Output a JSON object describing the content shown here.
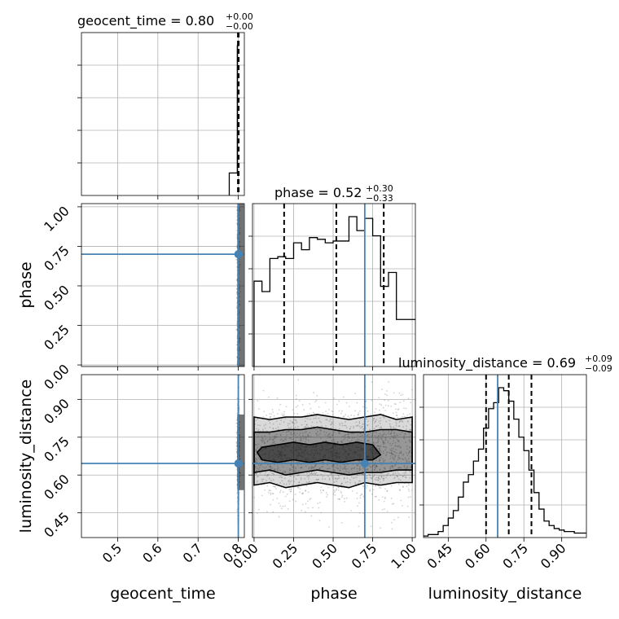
{
  "chart_data": {
    "type": "corner",
    "parameters": [
      "geocent_time",
      "phase",
      "luminosity_distance"
    ],
    "injected_values": {
      "geocent_time": 0.8,
      "phase": 0.7,
      "luminosity_distance": 0.646
    },
    "grid": true,
    "titles": [
      {
        "parameter": "geocent_time",
        "text": "geocent_time = 0.80",
        "upper": "+0.00",
        "lower": "−0.00"
      },
      {
        "parameter": "phase",
        "text": "phase = 0.52",
        "upper": "+0.30",
        "lower": "−0.33"
      },
      {
        "parameter": "luminosity_distance",
        "text": "luminosity_distance = 0.69",
        "upper": "+0.09",
        "lower": "−0.09"
      }
    ],
    "axis_labels": {
      "x": [
        "geocent_time",
        "phase",
        "luminosity_distance"
      ],
      "y": [
        "phase",
        "luminosity_distance"
      ]
    },
    "axis_ranges": {
      "geocent_time": [
        0.41,
        0.815
      ],
      "phase": [
        -0.01,
        1.02
      ],
      "luminosity_distance": [
        0.352,
        0.998
      ]
    },
    "ticks": {
      "geocent_time": {
        "values": [
          0.5,
          0.6,
          0.7,
          0.8
        ],
        "labels": [
          "0.5",
          "0.6",
          "0.7",
          "0.8"
        ]
      },
      "phase": {
        "values": [
          0.0,
          0.25,
          0.5,
          0.75,
          1.0
        ],
        "labels": [
          "0.00",
          "0.25",
          "0.50",
          "0.75",
          "1.00"
        ]
      },
      "luminosity_distance": {
        "values": [
          0.45,
          0.6,
          0.75,
          0.9
        ],
        "labels": [
          "0.45",
          "0.60",
          "0.75",
          "0.90"
        ]
      }
    },
    "quantiles": {
      "geocent_time": [
        0.799,
        0.8,
        0.801
      ],
      "phase": [
        0.19,
        0.52,
        0.82
      ],
      "luminosity_distance": [
        0.6,
        0.69,
        0.78
      ]
    },
    "histograms": {
      "geocent_time": {
        "edges": [
          0.7775,
          0.7975,
          0.8025
        ],
        "values": [
          0.15,
          1.0
        ]
      },
      "phase": {
        "edges": [
          0,
          0.05,
          0.1,
          0.15,
          0.2,
          0.25,
          0.3,
          0.35,
          0.4,
          0.45,
          0.5,
          0.55,
          0.6,
          0.65,
          0.7,
          0.75,
          0.8,
          0.85,
          0.9,
          0.95,
          1.0,
          1.05
        ],
        "values": [
          0.49,
          0.43,
          0.62,
          0.63,
          0.62,
          0.71,
          0.67,
          0.74,
          0.73,
          0.71,
          0.72,
          0.72,
          0.86,
          0.78,
          0.85,
          0.75,
          0.46,
          0.54,
          0.27,
          0.27,
          0.27
        ]
      },
      "luminosity_distance": {
        "edges": [
          0.35,
          0.37,
          0.39,
          0.41,
          0.43,
          0.45,
          0.47,
          0.49,
          0.51,
          0.53,
          0.55,
          0.57,
          0.59,
          0.61,
          0.63,
          0.65,
          0.67,
          0.69,
          0.71,
          0.73,
          0.75,
          0.77,
          0.79,
          0.81,
          0.83,
          0.85,
          0.87,
          0.89,
          0.91,
          0.93,
          0.95,
          0.97,
          0.99,
          1.0
        ],
        "values": [
          0.01,
          0.02,
          0.02,
          0.04,
          0.08,
          0.13,
          0.18,
          0.27,
          0.37,
          0.42,
          0.51,
          0.59,
          0.73,
          0.86,
          0.9,
          1.0,
          0.98,
          0.91,
          0.79,
          0.67,
          0.58,
          0.45,
          0.3,
          0.19,
          0.11,
          0.08,
          0.06,
          0.05,
          0.04,
          0.04,
          0.03,
          0.03,
          0.03
        ]
      }
    },
    "density_2d": {
      "geocent_time_vs_phase": {
        "x_center": 0.8,
        "x_spread": 0.002,
        "y_range": [
          0.0,
          1.0
        ]
      },
      "geocent_time_vs_luminosity_distance": {
        "x_center": 0.8,
        "x_spread": 0.002,
        "y_center": 0.69,
        "y_spread": 0.09
      },
      "phase_vs_luminosity_distance": {
        "x_range": [
          0.0,
          1.0
        ],
        "y_center": 0.69,
        "contours": [
          [
            [
              0.0,
              0.56
            ],
            [
              0.1,
              0.57
            ],
            [
              0.2,
              0.55
            ],
            [
              0.3,
              0.56
            ],
            [
              0.4,
              0.57
            ],
            [
              0.5,
              0.56
            ],
            [
              0.6,
              0.55
            ],
            [
              0.7,
              0.57
            ],
            [
              0.8,
              0.56
            ],
            [
              0.9,
              0.57
            ],
            [
              1.0,
              0.57
            ],
            [
              1.0,
              0.83
            ],
            [
              0.9,
              0.82
            ],
            [
              0.8,
              0.84
            ],
            [
              0.7,
              0.83
            ],
            [
              0.6,
              0.82
            ],
            [
              0.5,
              0.83
            ],
            [
              0.4,
              0.84
            ],
            [
              0.3,
              0.83
            ],
            [
              0.2,
              0.83
            ],
            [
              0.1,
              0.82
            ],
            [
              0.0,
              0.83
            ]
          ],
          [
            [
              0.0,
              0.61
            ],
            [
              0.1,
              0.62
            ],
            [
              0.2,
              0.6
            ],
            [
              0.3,
              0.61
            ],
            [
              0.4,
              0.62
            ],
            [
              0.5,
              0.61
            ],
            [
              0.6,
              0.6
            ],
            [
              0.7,
              0.61
            ],
            [
              0.8,
              0.61
            ],
            [
              0.9,
              0.62
            ],
            [
              1.0,
              0.62
            ],
            [
              1.0,
              0.77
            ],
            [
              0.9,
              0.78
            ],
            [
              0.8,
              0.78
            ],
            [
              0.7,
              0.77
            ],
            [
              0.6,
              0.77
            ],
            [
              0.5,
              0.78
            ],
            [
              0.4,
              0.79
            ],
            [
              0.3,
              0.78
            ],
            [
              0.2,
              0.78
            ],
            [
              0.1,
              0.77
            ],
            [
              0.0,
              0.77
            ]
          ],
          [
            [
              0.05,
              0.66
            ],
            [
              0.15,
              0.65
            ],
            [
              0.25,
              0.66
            ],
            [
              0.35,
              0.65
            ],
            [
              0.45,
              0.66
            ],
            [
              0.55,
              0.65
            ],
            [
              0.65,
              0.66
            ],
            [
              0.75,
              0.66
            ],
            [
              0.8,
              0.68
            ],
            [
              0.75,
              0.72
            ],
            [
              0.65,
              0.73
            ],
            [
              0.55,
              0.72
            ],
            [
              0.45,
              0.73
            ],
            [
              0.35,
              0.72
            ],
            [
              0.25,
              0.73
            ],
            [
              0.15,
              0.72
            ],
            [
              0.05,
              0.71
            ],
            [
              0.02,
              0.69
            ]
          ]
        ]
      }
    }
  }
}
